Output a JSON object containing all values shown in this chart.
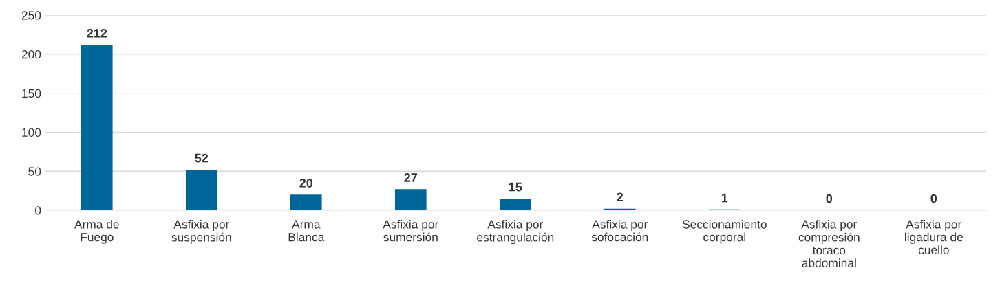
{
  "chart_data": {
    "type": "bar",
    "categories": [
      "Arma de\nFuego",
      "Asfixia por\nsuspensión",
      "Arma\nBlanca",
      "Asfixia por\nsumersión",
      "Asfixia por\nestrangulación",
      "Asfixia por\nsofocación",
      "Seccionamiento\ncorporal",
      "Asfixia por\ncompresión\ntoraco\nabdominal",
      "Asfixia por\nligadura de\ncuello"
    ],
    "values": [
      212,
      52,
      20,
      27,
      15,
      2,
      1,
      0,
      0
    ],
    "color": "#006699",
    "ylim": [
      0,
      250
    ],
    "yticks": [
      0,
      50,
      100,
      150,
      200,
      250
    ],
    "grid": "y",
    "data_labels": true
  }
}
